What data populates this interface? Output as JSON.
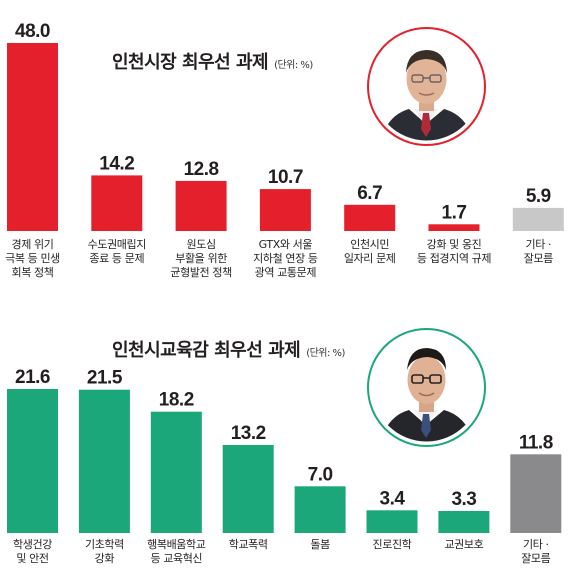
{
  "chart_data": [
    {
      "type": "bar",
      "title": "인천시장 최우선 과제",
      "unit": "(단위: %)",
      "categories": [
        "경제 위기\n극복 등 민생\n회복 정책",
        "수도권매립지\n종료 등 문제",
        "원도심\n부활을 위한\n균형발전 정책",
        "GTX와 서울\n지하철 연장 등\n광역 교통문제",
        "인천시민\n일자리 문제",
        "강화 및 옹진\n등 접경지역 규제",
        "기타 ·\n잘모름"
      ],
      "values": [
        48.0,
        14.2,
        12.8,
        10.7,
        6.7,
        1.7,
        5.9
      ],
      "value_labels": [
        "48.0",
        "14.2",
        "12.8",
        "10.7",
        "6.7",
        "1.7",
        "5.9"
      ],
      "bar_colors": [
        "#e3202b",
        "#e3202b",
        "#e3202b",
        "#e3202b",
        "#e3202b",
        "#e3202b",
        "#c8c8c8"
      ],
      "ylim": [
        0,
        48
      ]
    },
    {
      "type": "bar",
      "title": "인천시교육감 최우선 과제",
      "unit": "(단위: %)",
      "categories": [
        "학생건강\n및 안전",
        "기초학력\n강화",
        "행복배움학교\n등 교육혁신",
        "학교폭력",
        "돌봄",
        "진로진학",
        "교권보호",
        "기타 ·\n잘모름"
      ],
      "values": [
        21.6,
        21.5,
        18.2,
        13.2,
        7.0,
        3.4,
        3.3,
        11.8
      ],
      "value_labels": [
        "21.6",
        "21.5",
        "18.2",
        "13.2",
        "7.0",
        "3.4",
        "3.3",
        "11.8"
      ],
      "bar_colors": [
        "#1ba77a",
        "#1ba77a",
        "#1ba77a",
        "#1ba77a",
        "#1ba77a",
        "#1ba77a",
        "#1ba77a",
        "#8a8a8d"
      ],
      "ylim": [
        0,
        21.6
      ]
    }
  ]
}
